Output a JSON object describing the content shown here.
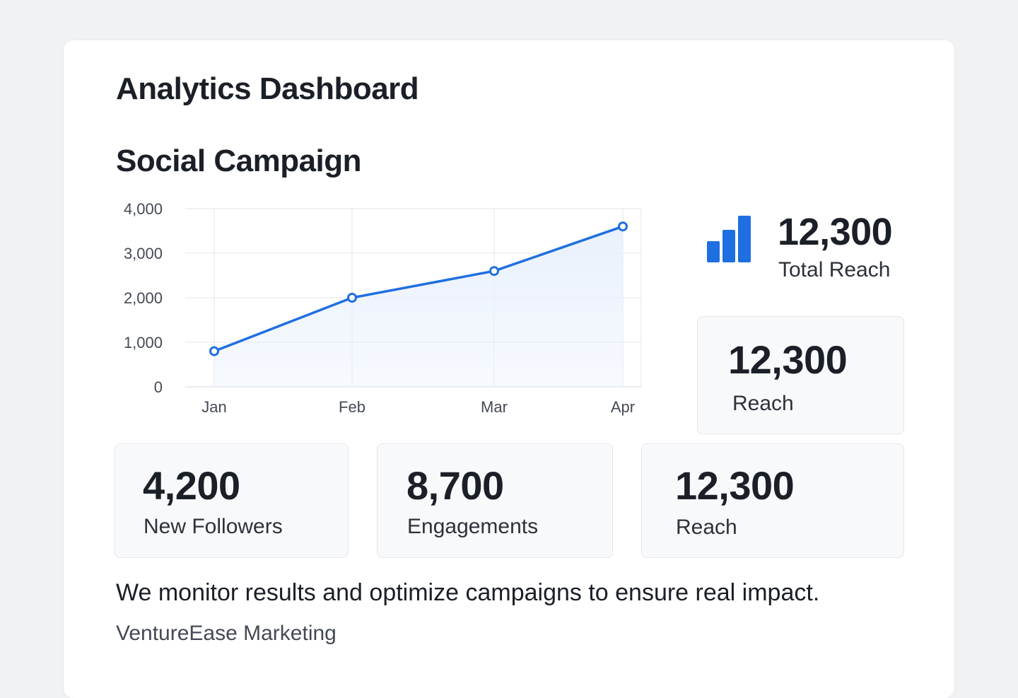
{
  "header": {
    "title": "Analytics Dashboard"
  },
  "campaign": {
    "title": "Social Campaign"
  },
  "colors": {
    "accent": "#1f6fe0",
    "area_fill": "#e8f0fc",
    "grid": "#e3e6eb"
  },
  "chart_data": {
    "type": "line",
    "title": "",
    "xlabel": "",
    "ylabel": "",
    "categories": [
      "Jan",
      "Feb",
      "Mar",
      "Apr"
    ],
    "series": [
      {
        "values": [
          800,
          2000,
          2600,
          3600
        ]
      }
    ],
    "ylim": [
      0,
      4000
    ],
    "yticks": [
      0,
      1000,
      2000,
      3000,
      4000
    ],
    "ytick_labels": [
      "0",
      "1,000",
      "2,000",
      "3,000",
      "4,000"
    ],
    "grid": true,
    "area_fill": true,
    "markers": "hollow-circle"
  },
  "hero": {
    "icon": "bar-chart-icon",
    "value": "12,300",
    "label": "Total Reach"
  },
  "stats": [
    {
      "value": "12,300",
      "label": "Reach"
    },
    {
      "value": "4,200",
      "label": "New Followers"
    },
    {
      "value": "8,700",
      "label": "Engagements"
    },
    {
      "value": "12,300",
      "label": "Reach"
    }
  ],
  "footer": {
    "tagline": "We monitor results and optimize campaigns to ensure real impact.",
    "brand": "VentureEase Marketing"
  }
}
